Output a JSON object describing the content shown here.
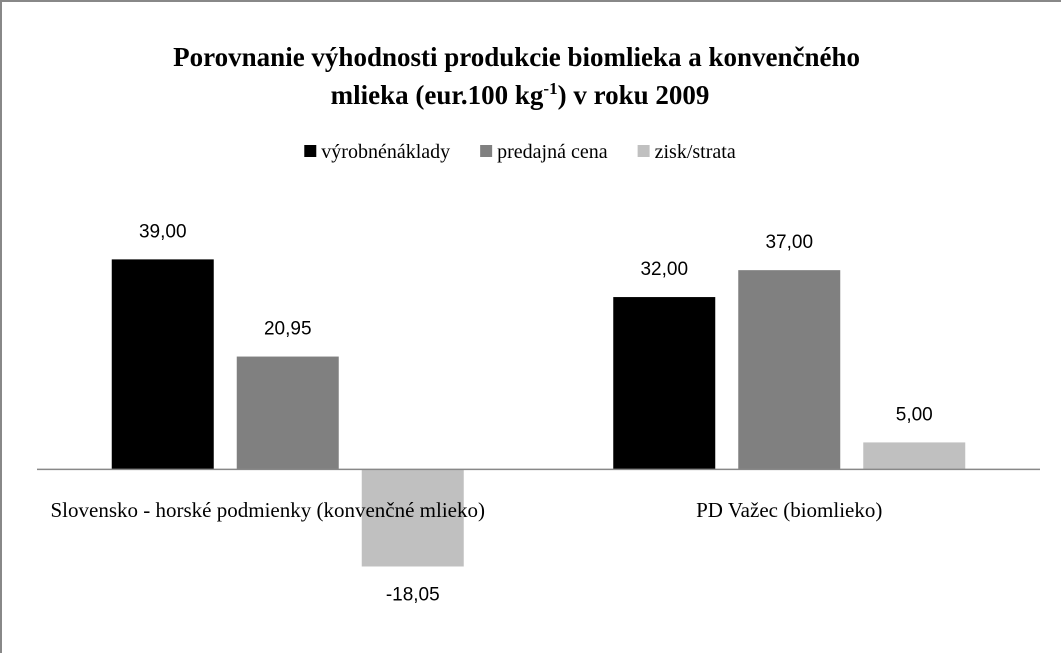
{
  "chart_data": {
    "type": "bar",
    "title": [
      "Porovnanie výhodnosti produkcie biomlieka a konvenčného",
      "mlieka (eur.100 kg",
      "-1",
      ") v roku 2009"
    ],
    "categories": [
      "Slovensko - horské podmienky (konvenčné mlieko)",
      "PD Važec (biomlieko)"
    ],
    "series": [
      {
        "name": "výrobnénáklady",
        "color": "#000000",
        "values": [
          39.0,
          32.0
        ],
        "value_labels": [
          "39,00",
          "32,00"
        ]
      },
      {
        "name": "predajná cena",
        "color": "#808080",
        "values": [
          20.95,
          37.0
        ],
        "value_labels": [
          "20,95",
          "37,00"
        ]
      },
      {
        "name": "zisk/strata",
        "color": "#c0c0c0",
        "values": [
          -18.05,
          5.0
        ],
        "value_labels": [
          "-18,05",
          "5,00"
        ]
      }
    ],
    "ylim": [
      -20,
      40
    ],
    "legend": "top"
  }
}
